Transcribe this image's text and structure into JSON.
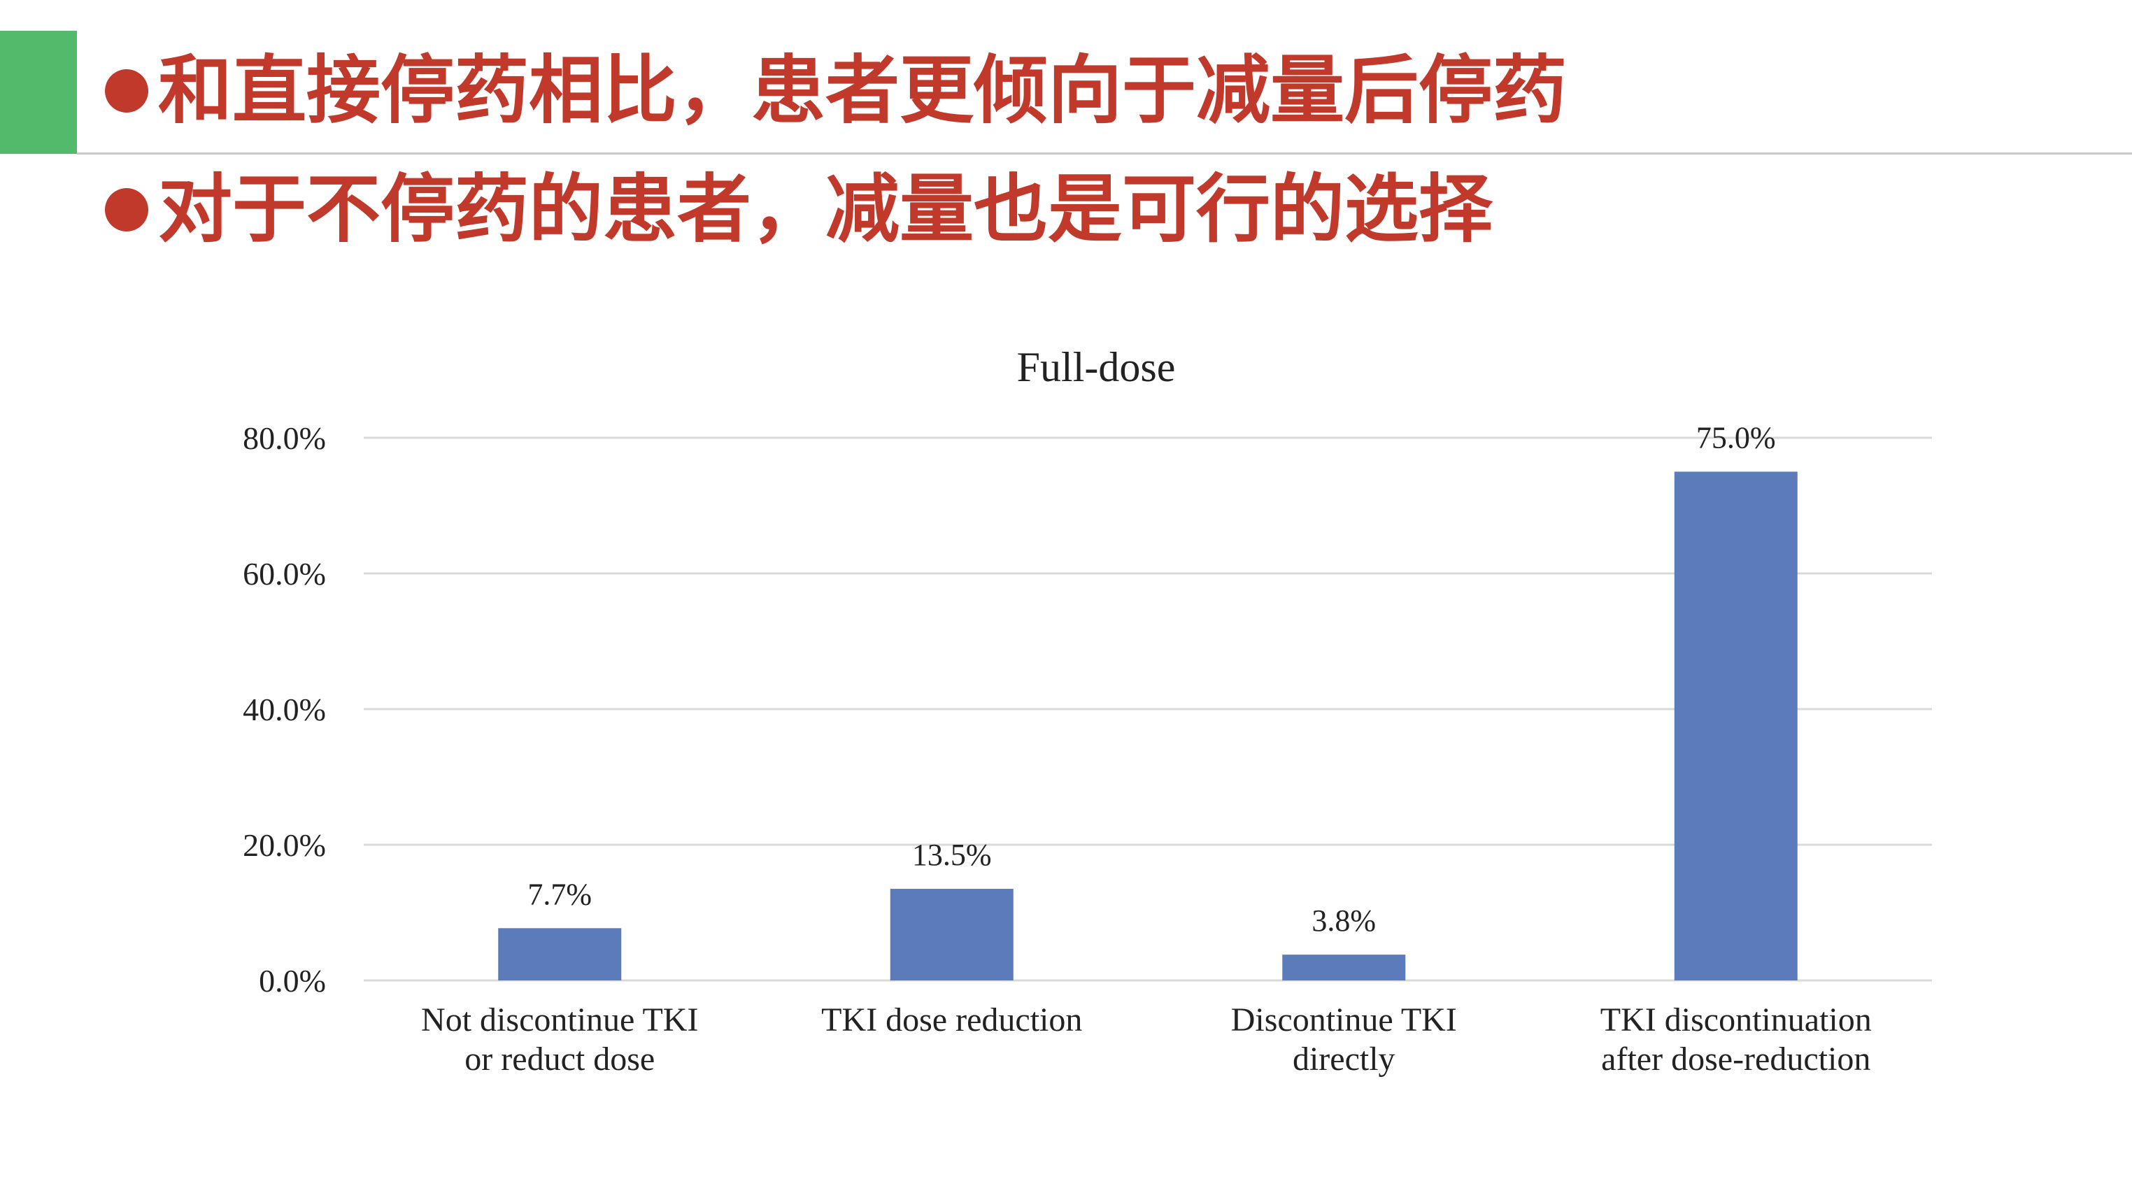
{
  "slide": {
    "headlines": [
      "和直接停药相比，患者更倾向于减量后停药",
      "对于不停药的患者，减量也是可行的选择"
    ]
  },
  "chart_data": {
    "type": "bar",
    "title": "Full-dose",
    "categories": [
      [
        "Not discontinue TKI",
        "or reduct dose"
      ],
      [
        "TKI dose reduction"
      ],
      [
        "Discontinue TKI",
        "directly"
      ],
      [
        "TKI discontinuation",
        "after dose-reduction"
      ]
    ],
    "values": [
      7.7,
      13.5,
      3.8,
      75.0
    ],
    "data_labels": [
      "7.7%",
      "13.5%",
      "3.8%",
      "75.0%"
    ],
    "yticks": [
      0,
      20,
      40,
      60,
      80
    ],
    "ytick_labels": [
      "0.0%",
      "20.0%",
      "40.0%",
      "60.0%",
      "80.0%"
    ],
    "ylim": [
      0,
      80
    ],
    "xlabel": "",
    "ylabel": "",
    "grid": true,
    "legend": "none",
    "bar_color": "#5b7bba",
    "grid_color": "#d9d9d9",
    "text_color": "#222222"
  }
}
